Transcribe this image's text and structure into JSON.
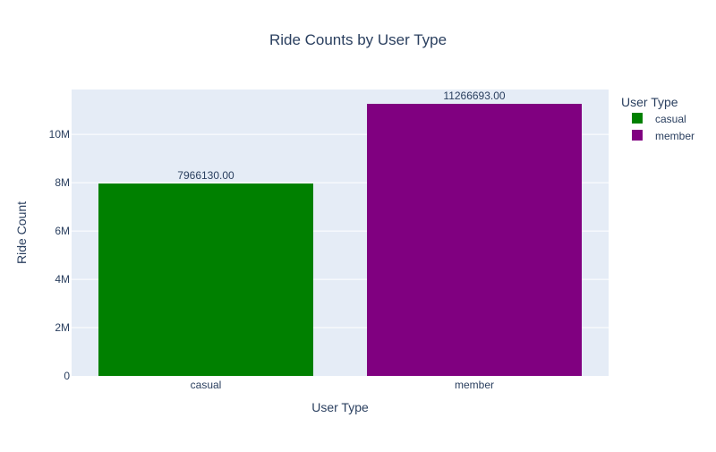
{
  "chart_data": {
    "type": "bar",
    "title": "Ride Counts by User Type",
    "xlabel": "User Type",
    "ylabel": "Ride Count",
    "categories": [
      "casual",
      "member"
    ],
    "values": [
      7966130,
      11266693
    ],
    "data_labels": [
      "7966130.00",
      "11266693.00"
    ],
    "colors": [
      "#008000",
      "#800080"
    ],
    "ylim": [
      0,
      11859677
    ],
    "yticks": [
      0,
      2000000,
      4000000,
      6000000,
      8000000,
      10000000
    ],
    "ytick_labels": [
      "0",
      "2M",
      "4M",
      "6M",
      "8M",
      "10M"
    ],
    "grid": true,
    "plot_background": "#E5ECF6",
    "legend": {
      "title": "User Type",
      "position": "top-right",
      "entries": [
        "casual",
        "member"
      ]
    }
  }
}
